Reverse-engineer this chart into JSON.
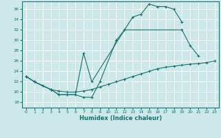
{
  "bg_color": "#cce8e8",
  "grid_color": "#ffffff",
  "line_color": "#1a7070",
  "xlabel": "Humidex (Indice chaleur)",
  "xlim": [
    -0.5,
    23.5
  ],
  "ylim": [
    17.0,
    37.5
  ],
  "xticks": [
    0,
    1,
    2,
    3,
    4,
    5,
    6,
    7,
    8,
    9,
    10,
    11,
    12,
    13,
    14,
    15,
    16,
    17,
    18,
    19,
    20,
    21,
    22,
    23
  ],
  "yticks": [
    18,
    20,
    22,
    24,
    26,
    28,
    30,
    32,
    34,
    36
  ],
  "series": [
    {
      "x": [
        0,
        1,
        3,
        4,
        5,
        6,
        7,
        8,
        9,
        11,
        12,
        13,
        14,
        15,
        16,
        17,
        18,
        19
      ],
      "y": [
        23,
        22,
        20.5,
        19.5,
        19.5,
        19.5,
        19,
        19,
        22,
        30,
        32,
        34.5,
        35,
        37,
        36.5,
        36.5,
        36,
        33.5
      ]
    },
    {
      "x": [
        0,
        1,
        3,
        4,
        5,
        6,
        7,
        8,
        12,
        19,
        20,
        21
      ],
      "y": [
        23,
        22,
        20.5,
        19.5,
        19.5,
        19.5,
        27.5,
        22,
        32,
        32,
        29,
        27
      ]
    },
    {
      "x": [
        0,
        1,
        2,
        3,
        4,
        5,
        6,
        7,
        8,
        9,
        10,
        11,
        12,
        13,
        14,
        15,
        16,
        17,
        18,
        19,
        20,
        21,
        22,
        23
      ],
      "y": [
        23,
        22,
        21.2,
        20.5,
        20.2,
        20.0,
        20.0,
        20.2,
        20.5,
        21.0,
        21.5,
        22.0,
        22.5,
        23.0,
        23.5,
        24.0,
        24.5,
        24.8,
        25.0,
        25.2,
        25.4,
        25.5,
        25.7,
        26
      ]
    }
  ]
}
